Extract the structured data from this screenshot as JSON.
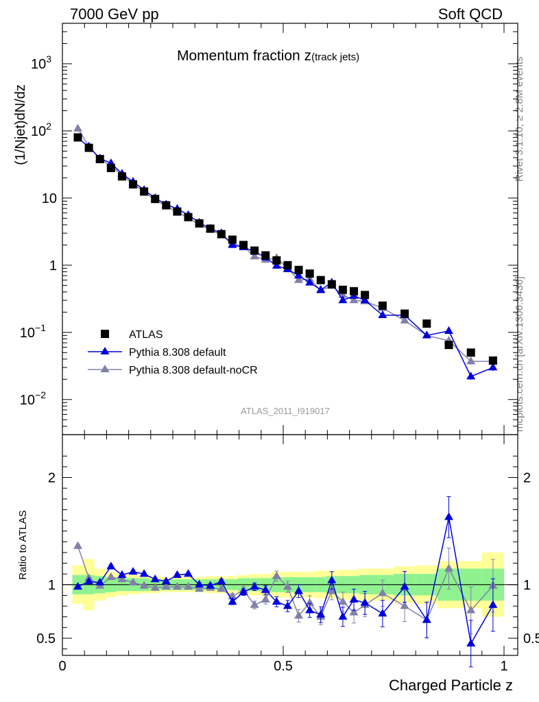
{
  "header": {
    "left": "7000 GeV pp",
    "right": "Soft QCD"
  },
  "side_labels": {
    "rivet": "Rivet 3.1.10, ≥ 2.8M events",
    "mcplots": "mcplots.cern.ch [arXiv:1306.3436]"
  },
  "watermark": "ATLAS_2011_I919017",
  "colors": {
    "atlas": "#000000",
    "default": "#0000dd",
    "nocr": "#8080a8",
    "band_inner": "#8ff28f",
    "band_outer": "#ffff99"
  },
  "chart_data": [
    {
      "type": "scatter",
      "title_main": "Momentum fraction z",
      "title_sub": "(track jets)",
      "ylabel": "(1/Njet)dN/dz",
      "yscale": "log",
      "xlim": [
        0,
        1
      ],
      "ylim": [
        0.003,
        4000
      ],
      "y_ticks": [
        {
          "value": 0.01,
          "label": "10",
          "exp": "−2"
        },
        {
          "value": 0.1,
          "label": "10",
          "exp": "−1"
        },
        {
          "value": 1,
          "label": "1",
          "exp": ""
        },
        {
          "value": 10,
          "label": "10",
          "exp": ""
        },
        {
          "value": 100,
          "label": "10",
          "exp": "2"
        },
        {
          "value": 1000,
          "label": "10",
          "exp": "3"
        }
      ],
      "x": [
        0.035,
        0.06,
        0.085,
        0.11,
        0.135,
        0.16,
        0.185,
        0.21,
        0.235,
        0.26,
        0.285,
        0.31,
        0.335,
        0.36,
        0.385,
        0.41,
        0.435,
        0.46,
        0.485,
        0.51,
        0.535,
        0.56,
        0.585,
        0.61,
        0.635,
        0.66,
        0.685,
        0.725,
        0.775,
        0.825,
        0.875,
        0.925,
        0.975
      ],
      "legend": [
        "ATLAS",
        "Pythia 8.308 default",
        "Pythia 8.308 default-noCR"
      ],
      "series": [
        {
          "name": "ATLAS",
          "values": [
            80,
            56,
            38,
            28,
            21,
            16,
            12.5,
            9.7,
            7.8,
            6.3,
            5.2,
            4.2,
            3.5,
            2.9,
            2.4,
            2.0,
            1.65,
            1.4,
            1.18,
            1.0,
            0.85,
            0.75,
            0.6,
            0.52,
            0.43,
            0.41,
            0.36,
            0.25,
            0.19,
            0.135,
            0.065,
            0.05,
            0.038
          ]
        },
        {
          "name": "Pythia 8.308 default",
          "values": [
            78,
            58,
            39,
            33,
            23,
            17.5,
            13.2,
            10,
            8,
            6.9,
            5.6,
            4.3,
            3.5,
            3.0,
            2.0,
            1.85,
            1.6,
            1.3,
            0.98,
            0.87,
            0.7,
            0.55,
            0.43,
            0.55,
            0.3,
            0.35,
            0.3,
            0.18,
            0.18,
            0.09,
            0.105,
            0.022,
            0.03
          ]
        },
        {
          "name": "Pythia 8.308 default-noCR",
          "values": [
            108,
            59,
            38,
            30,
            22,
            16.2,
            12.4,
            9.3,
            7.6,
            6.2,
            5.1,
            4.0,
            3.4,
            2.8,
            2.1,
            1.9,
            1.35,
            1.2,
            1.28,
            0.9,
            0.6,
            0.62,
            0.42,
            0.49,
            0.36,
            0.3,
            0.29,
            0.23,
            0.15,
            0.09,
            0.075,
            0.037,
            0.037
          ]
        }
      ]
    },
    {
      "type": "line",
      "ylabel": "Ratio to ATLAS",
      "xlabel": "Charged Particle z",
      "xlim": [
        0,
        1
      ],
      "ylim": [
        0.34,
        2.4
      ],
      "x_ticks": [
        {
          "value": 0,
          "label": "0"
        },
        {
          "value": 0.5,
          "label": "0.5"
        },
        {
          "value": 1,
          "label": "1"
        }
      ],
      "y_ticks": [
        {
          "value": 0.5,
          "label": "0.5"
        },
        {
          "value": 1,
          "label": "1"
        },
        {
          "value": 2,
          "label": "2"
        }
      ],
      "series": [
        {
          "name": "Pythia 8.308 default",
          "values": [
            0.98,
            1.03,
            1.02,
            1.17,
            1.09,
            1.12,
            1.1,
            1.05,
            1.03,
            1.09,
            1.1,
            1.0,
            0.99,
            1.03,
            0.84,
            0.93,
            0.98,
            0.95,
            0.84,
            0.8,
            0.94,
            0.76,
            0.72,
            1.04,
            0.7,
            0.86,
            0.83,
            0.73,
            0.98,
            0.67,
            1.63,
            0.45,
            0.81
          ]
        },
        {
          "name": "Pythia 8.308 default-noCR",
          "values": [
            1.36,
            1.06,
            0.99,
            1.07,
            1.05,
            1.02,
            0.99,
            0.97,
            0.98,
            0.98,
            0.98,
            0.96,
            0.97,
            0.96,
            0.89,
            0.95,
            0.81,
            0.86,
            1.08,
            0.98,
            0.71,
            0.83,
            0.7,
            0.94,
            0.84,
            0.74,
            0.81,
            0.92,
            0.8,
            0.67,
            1.15,
            0.76,
            0.99
          ]
        }
      ],
      "band_inner": [
        0.09,
        0.09,
        0.08,
        0.07,
        0.06,
        0.06,
        0.06,
        0.05,
        0.05,
        0.05,
        0.05,
        0.05,
        0.05,
        0.05,
        0.05,
        0.06,
        0.06,
        0.06,
        0.07,
        0.07,
        0.07,
        0.07,
        0.07,
        0.08,
        0.08,
        0.08,
        0.09,
        0.09,
        0.1,
        0.1,
        0.15,
        0.15,
        0.15
      ],
      "band_outer": [
        0.18,
        0.24,
        0.15,
        0.12,
        0.1,
        0.09,
        0.08,
        0.08,
        0.07,
        0.07,
        0.07,
        0.07,
        0.08,
        0.08,
        0.08,
        0.09,
        0.1,
        0.1,
        0.12,
        0.12,
        0.12,
        0.12,
        0.13,
        0.13,
        0.14,
        0.14,
        0.15,
        0.15,
        0.17,
        0.18,
        0.22,
        0.22,
        0.3
      ]
    }
  ]
}
